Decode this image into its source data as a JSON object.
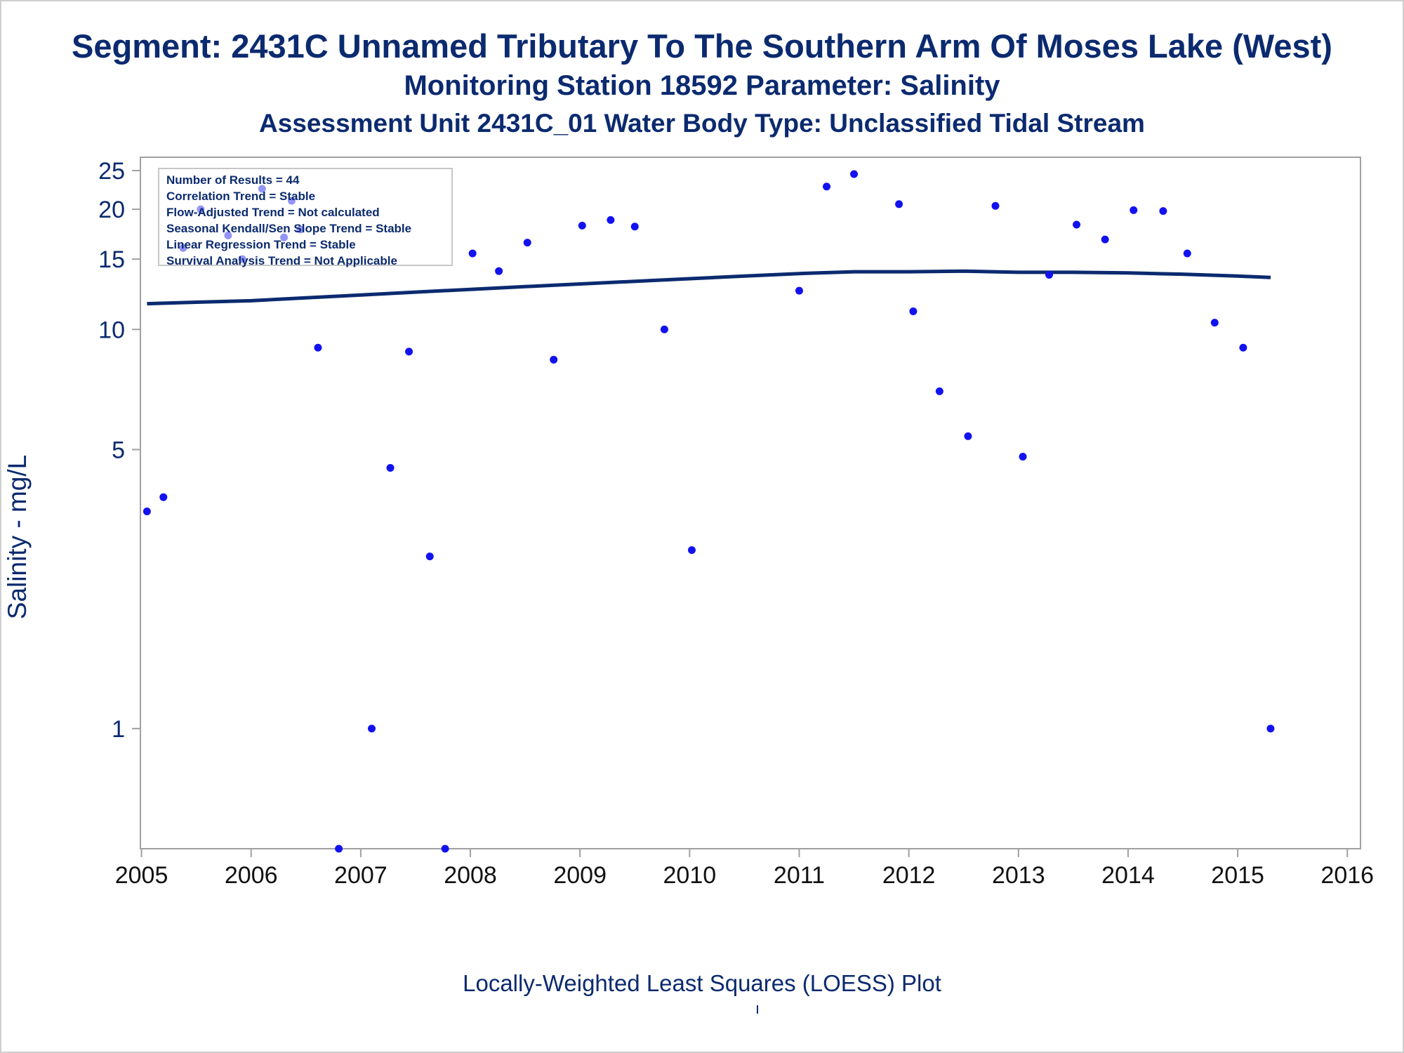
{
  "titles": {
    "line1": "Segment: 2431C  Unnamed Tributary To The Southern Arm Of Moses Lake (West)",
    "line2": "Monitoring Station 18592 Parameter: Salinity",
    "line3": "Assessment Unit 2431C_01   Water Body Type: Unclassified Tidal Stream"
  },
  "stats": [
    "Number of Results = 44",
    "Correlation Trend = Stable",
    "Flow-Adjusted Trend = Not calculated",
    "Seasonal Kendall/Sen Slope Trend = Stable",
    "Linear Regression Trend = Stable",
    "Survival Analysis Trend = Not Applicable"
  ],
  "footer": "Locally-Weighted Least Squares (LOESS) Plot",
  "colors": {
    "text": "#0b2a6f",
    "points": "#1212f0",
    "line": "#0b2a6f",
    "axis": "#a0a0a0"
  },
  "chart_data": {
    "type": "scatter",
    "ylabel": "Salinity - mg/L",
    "xlabel": "",
    "x_ticks": [
      "2005",
      "2006",
      "2007",
      "2008",
      "2009",
      "2010",
      "2011",
      "2012",
      "2013",
      "2014",
      "2015",
      "2016"
    ],
    "y_ticks": [
      1,
      5,
      10,
      15,
      20,
      25
    ],
    "y_scale": "log",
    "xlim": [
      2004.99,
      2016.12
    ],
    "ylim": [
      0.5,
      27
    ],
    "legend": "top-left",
    "series": [
      {
        "type": "scatter",
        "points": [
          [
            2005.05,
            3.5
          ],
          [
            2005.2,
            3.8
          ],
          [
            2005.38,
            16.0
          ],
          [
            2005.54,
            20.0
          ],
          [
            2005.79,
            17.2
          ],
          [
            2005.92,
            15.0
          ],
          [
            2006.1,
            22.5
          ],
          [
            2006.3,
            17.0
          ],
          [
            2006.37,
            21.0
          ],
          [
            2006.45,
            17.8
          ],
          [
            2006.61,
            9.0
          ],
          [
            2006.8,
            0.5
          ],
          [
            2007.1,
            1.0
          ],
          [
            2007.27,
            4.5
          ],
          [
            2007.44,
            8.8
          ],
          [
            2007.63,
            2.7
          ],
          [
            2007.77,
            0.5
          ],
          [
            2008.02,
            15.5
          ],
          [
            2008.26,
            14.0
          ],
          [
            2008.52,
            16.5
          ],
          [
            2008.76,
            8.4
          ],
          [
            2009.02,
            18.2
          ],
          [
            2009.28,
            18.8
          ],
          [
            2009.5,
            18.1
          ],
          [
            2009.77,
            10.0
          ],
          [
            2010.02,
            2.8
          ],
          [
            2011.0,
            12.5
          ],
          [
            2011.25,
            22.8
          ],
          [
            2011.5,
            24.5
          ],
          [
            2011.91,
            20.6
          ],
          [
            2012.04,
            11.1
          ],
          [
            2012.28,
            7.0
          ],
          [
            2012.54,
            5.4
          ],
          [
            2012.79,
            20.4
          ],
          [
            2013.04,
            4.8
          ],
          [
            2013.28,
            13.7
          ],
          [
            2013.53,
            18.3
          ],
          [
            2013.79,
            16.8
          ],
          [
            2014.05,
            19.9
          ],
          [
            2014.32,
            19.8
          ],
          [
            2014.54,
            15.5
          ],
          [
            2014.79,
            10.4
          ],
          [
            2015.05,
            9.0
          ],
          [
            2015.3,
            1.0
          ]
        ]
      },
      {
        "type": "line",
        "points": [
          [
            2005.05,
            11.6
          ],
          [
            2005.5,
            11.7
          ],
          [
            2006.0,
            11.8
          ],
          [
            2006.5,
            12.0
          ],
          [
            2007.0,
            12.2
          ],
          [
            2007.5,
            12.4
          ],
          [
            2008.0,
            12.6
          ],
          [
            2008.5,
            12.8
          ],
          [
            2009.0,
            13.0
          ],
          [
            2009.5,
            13.2
          ],
          [
            2010.0,
            13.4
          ],
          [
            2010.5,
            13.6
          ],
          [
            2011.0,
            13.8
          ],
          [
            2011.5,
            13.95
          ],
          [
            2012.0,
            13.95
          ],
          [
            2012.5,
            14.0
          ],
          [
            2013.0,
            13.9
          ],
          [
            2013.5,
            13.9
          ],
          [
            2014.0,
            13.85
          ],
          [
            2014.5,
            13.75
          ],
          [
            2015.0,
            13.6
          ],
          [
            2015.3,
            13.5
          ]
        ]
      }
    ]
  }
}
